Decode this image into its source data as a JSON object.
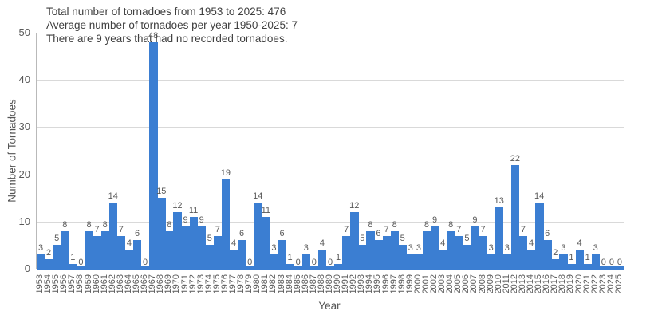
{
  "title_lines": [
    "Total number of tornadoes from 1953 to 2025: 476",
    "Average number of tornadoes per year 1950-2025: 7",
    "There are 9 years that had no recorded tornadoes."
  ],
  "chart_data": {
    "type": "bar",
    "categories": [
      1953,
      1954,
      1955,
      1956,
      1957,
      1958,
      1959,
      1960,
      1961,
      1962,
      1963,
      1964,
      1965,
      1966,
      1967,
      1968,
      1969,
      1970,
      1971,
      1972,
      1973,
      1974,
      1975,
      1976,
      1977,
      1978,
      1979,
      1980,
      1981,
      1982,
      1983,
      1984,
      1985,
      1986,
      1987,
      1988,
      1989,
      1990,
      1991,
      1992,
      1993,
      1994,
      1995,
      1996,
      1997,
      1998,
      1999,
      2000,
      2001,
      2002,
      2003,
      2004,
      2005,
      2006,
      2007,
      2008,
      2009,
      2010,
      2011,
      2012,
      2013,
      2014,
      2015,
      2016,
      2017,
      2018,
      2019,
      2020,
      2021,
      2022,
      2023,
      2024,
      2025
    ],
    "values": [
      3,
      2,
      5,
      8,
      1,
      0,
      8,
      7,
      8,
      14,
      7,
      4,
      6,
      0,
      48,
      15,
      8,
      12,
      9,
      11,
      9,
      5,
      7,
      19,
      4,
      6,
      0,
      14,
      11,
      3,
      6,
      1,
      0,
      3,
      0,
      4,
      0,
      1,
      7,
      12,
      5,
      8,
      6,
      7,
      8,
      5,
      3,
      3,
      8,
      9,
      4,
      8,
      7,
      5,
      9,
      7,
      3,
      13,
      3,
      22,
      7,
      4,
      14,
      6,
      2,
      3,
      1,
      4,
      1,
      3,
      0,
      0,
      0
    ],
    "bar_value_labels": true,
    "xlabel": "Year",
    "ylabel": "Number of Tornadoes",
    "ylim": [
      0,
      50
    ],
    "yticks": [
      0,
      10,
      20,
      30,
      40,
      50
    ],
    "grid": true,
    "legend": false,
    "bar_color": "#3b7ed2",
    "grid_color": "#d9d9d9",
    "tick_label_color": "#595959",
    "value_label_color": "#595959",
    "title_color": "#404040"
  }
}
